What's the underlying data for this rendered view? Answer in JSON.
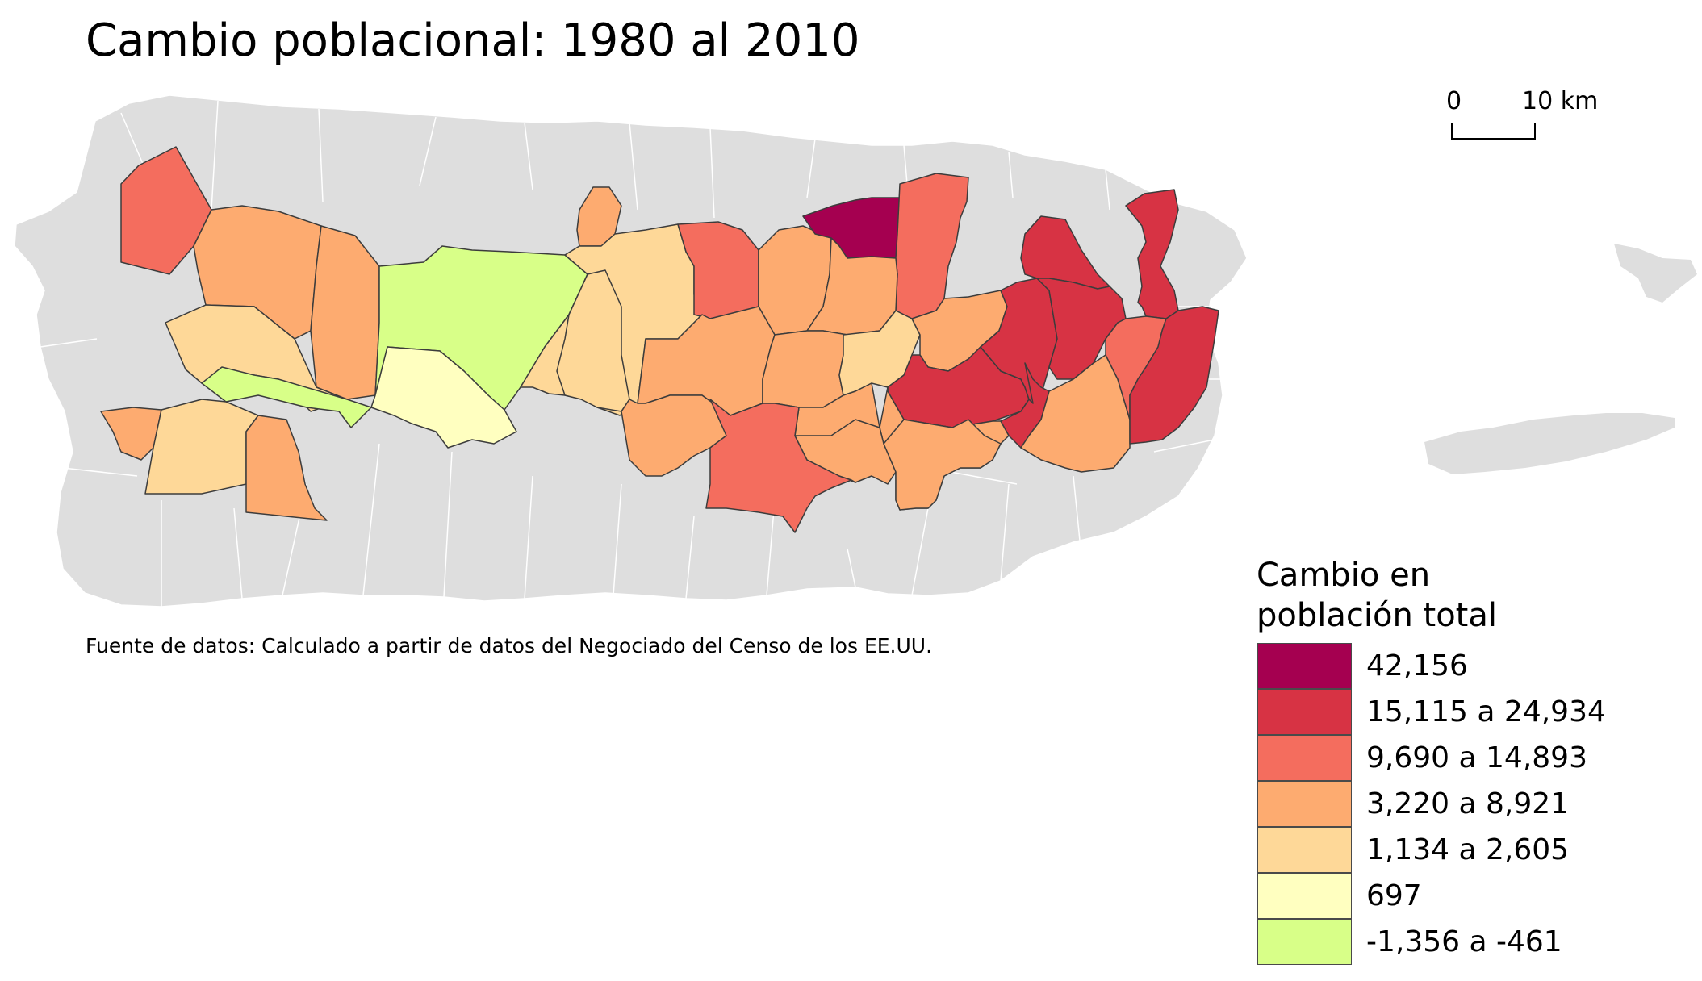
{
  "title": "Cambio poblacional: 1980 al 2010",
  "scale_bar": {
    "start_label": "0",
    "end_label": "10 km"
  },
  "source_note": "Fuente de datos: Calculado a partir de datos del Negociado del Censo de los EE.UU.",
  "legend": {
    "title_line1": "Cambio en",
    "title_line2": "población total",
    "classes": [
      {
        "label": "42,156",
        "color": "#a50050"
      },
      {
        "label": "15,115 a 24,934",
        "color": "#d73344"
      },
      {
        "label": "9,690 a 14,893",
        "color": "#f46d5e"
      },
      {
        "label": "3,220 a 8,921",
        "color": "#fdab70"
      },
      {
        "label": "1,134 a 2,605",
        "color": "#fed898"
      },
      {
        "label": "697",
        "color": "#ffffc0"
      },
      {
        "label": "-1,356 a -461",
        "color": "#d8ff88"
      }
    ]
  },
  "colors": {
    "background_land": "#dedede",
    "boundary_gray": "#ffffff",
    "boundary_highlight": "#3c3c3c"
  }
}
